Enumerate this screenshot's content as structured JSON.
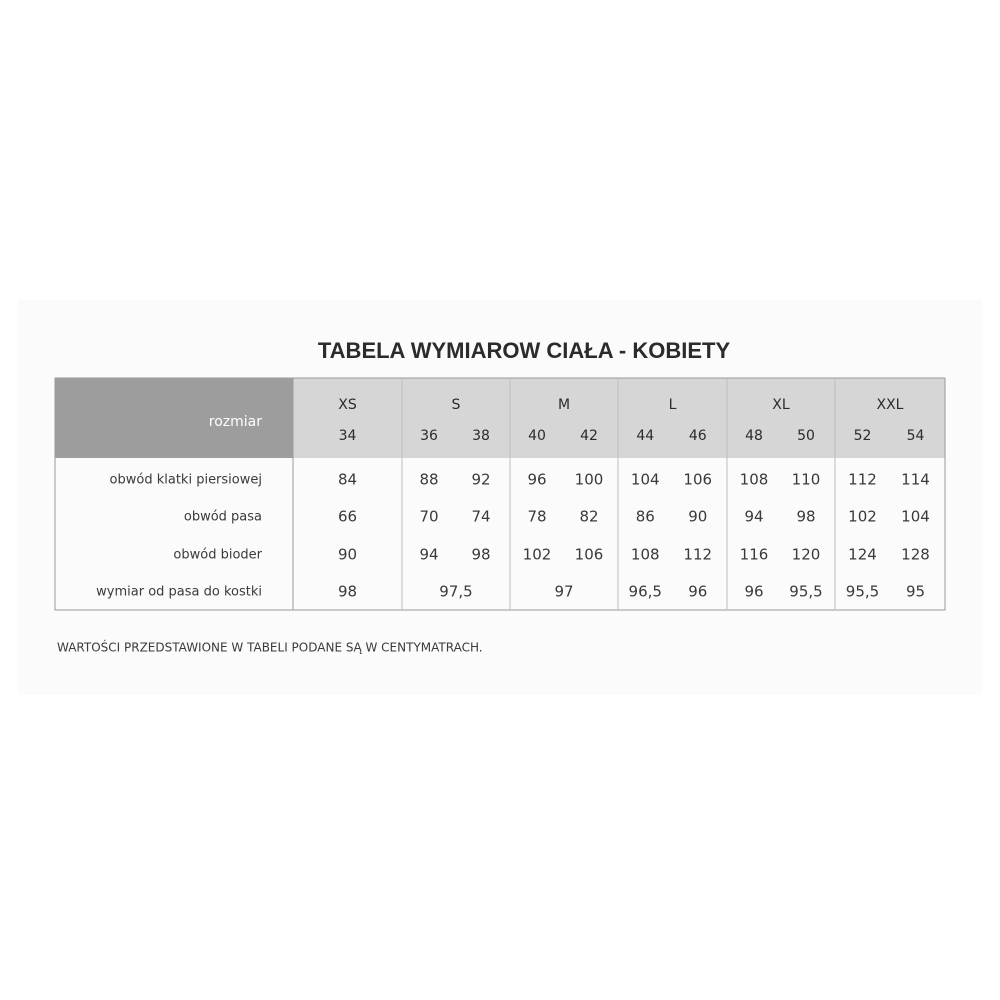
{
  "title": "TABELA WYMIAROW CIAŁA - KOBIETY",
  "table": {
    "corner": "rozmiar",
    "groups": [
      {
        "size": "XS",
        "numbers": [
          34
        ]
      },
      {
        "size": "S",
        "numbers": [
          36,
          38
        ]
      },
      {
        "size": "M",
        "numbers": [
          40,
          42
        ]
      },
      {
        "size": "L",
        "numbers": [
          44,
          46
        ]
      },
      {
        "size": "XL",
        "numbers": [
          48,
          50
        ]
      },
      {
        "size": "XXL",
        "numbers": [
          52,
          54
        ]
      }
    ],
    "rows": [
      {
        "label": "obwód klatki piersiowej",
        "cells": [
          [
            84
          ],
          [
            88,
            92
          ],
          [
            96,
            100
          ],
          [
            104,
            106
          ],
          [
            108,
            110
          ],
          [
            112,
            114
          ]
        ]
      },
      {
        "label": "obwód pasa",
        "cells": [
          [
            66
          ],
          [
            70,
            74
          ],
          [
            78,
            82
          ],
          [
            86,
            90
          ],
          [
            94,
            98
          ],
          [
            102,
            104
          ]
        ]
      },
      {
        "label": "obwód bioder",
        "cells": [
          [
            90
          ],
          [
            94,
            98
          ],
          [
            102,
            106
          ],
          [
            108,
            112
          ],
          [
            116,
            120
          ],
          [
            124,
            128
          ]
        ]
      },
      {
        "label": "wymiar od pasa do kostki",
        "cells": [
          [
            98
          ],
          [
            "97,5"
          ],
          [
            97
          ],
          [
            "96,5",
            96
          ],
          [
            96,
            "95,5"
          ],
          [
            "95,5",
            95
          ]
        ]
      }
    ]
  },
  "note": "WARTOŚCI PRZEDSTAWIONE W TABELI PODANE SĄ W CENTYMATRACH."
}
